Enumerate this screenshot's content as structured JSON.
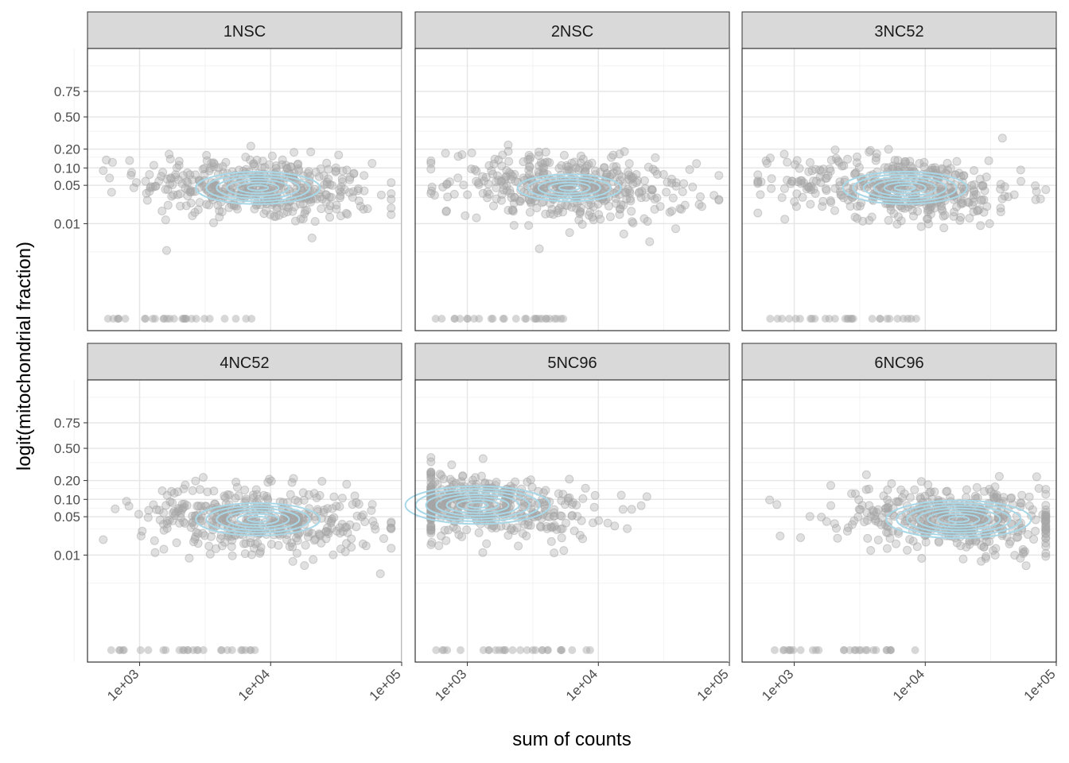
{
  "chart_data": {
    "type": "scatter",
    "title": "",
    "xlabel": "sum of counts",
    "ylabel": "logit(mitochondrial fraction)",
    "x_scale": "log10",
    "x_range": [
      400,
      100000
    ],
    "x_ticks": [
      {
        "value": 1000,
        "label": "1e+03"
      },
      {
        "value": 10000,
        "label": "1e+04"
      },
      {
        "value": 100000,
        "label": "1e+05"
      }
    ],
    "y_scale": "logit",
    "y_ticks": [
      {
        "value": 0.01,
        "label": "0.01"
      },
      {
        "value": 0.05,
        "label": "0.05"
      },
      {
        "value": 0.1,
        "label": "0.10"
      },
      {
        "value": 0.2,
        "label": "0.20"
      },
      {
        "value": 0.5,
        "label": "0.50"
      },
      {
        "value": 0.75,
        "label": "0.75"
      }
    ],
    "point_color": "#a6a6a6",
    "contour_color": "#a8d8e8",
    "strip_color": "#d9d9d9",
    "grid": true,
    "panels": [
      {
        "label": "1NSC",
        "center": {
          "x": 8000,
          "y": 0.045
        },
        "contour_rings": 6
      },
      {
        "label": "2NSC",
        "center": {
          "x": 6000,
          "y": 0.045
        },
        "contour_rings": 5
      },
      {
        "label": "3NC52",
        "center": {
          "x": 7000,
          "y": 0.045
        },
        "contour_rings": 6
      },
      {
        "label": "4NC52",
        "center": {
          "x": 8000,
          "y": 0.045
        },
        "contour_rings": 6
      },
      {
        "label": "5NC96",
        "center": {
          "x": 1200,
          "y": 0.08
        },
        "contour_rings": 7
      },
      {
        "label": "6NC96",
        "center": {
          "x": 18000,
          "y": 0.045
        },
        "contour_rings": 7
      }
    ]
  }
}
